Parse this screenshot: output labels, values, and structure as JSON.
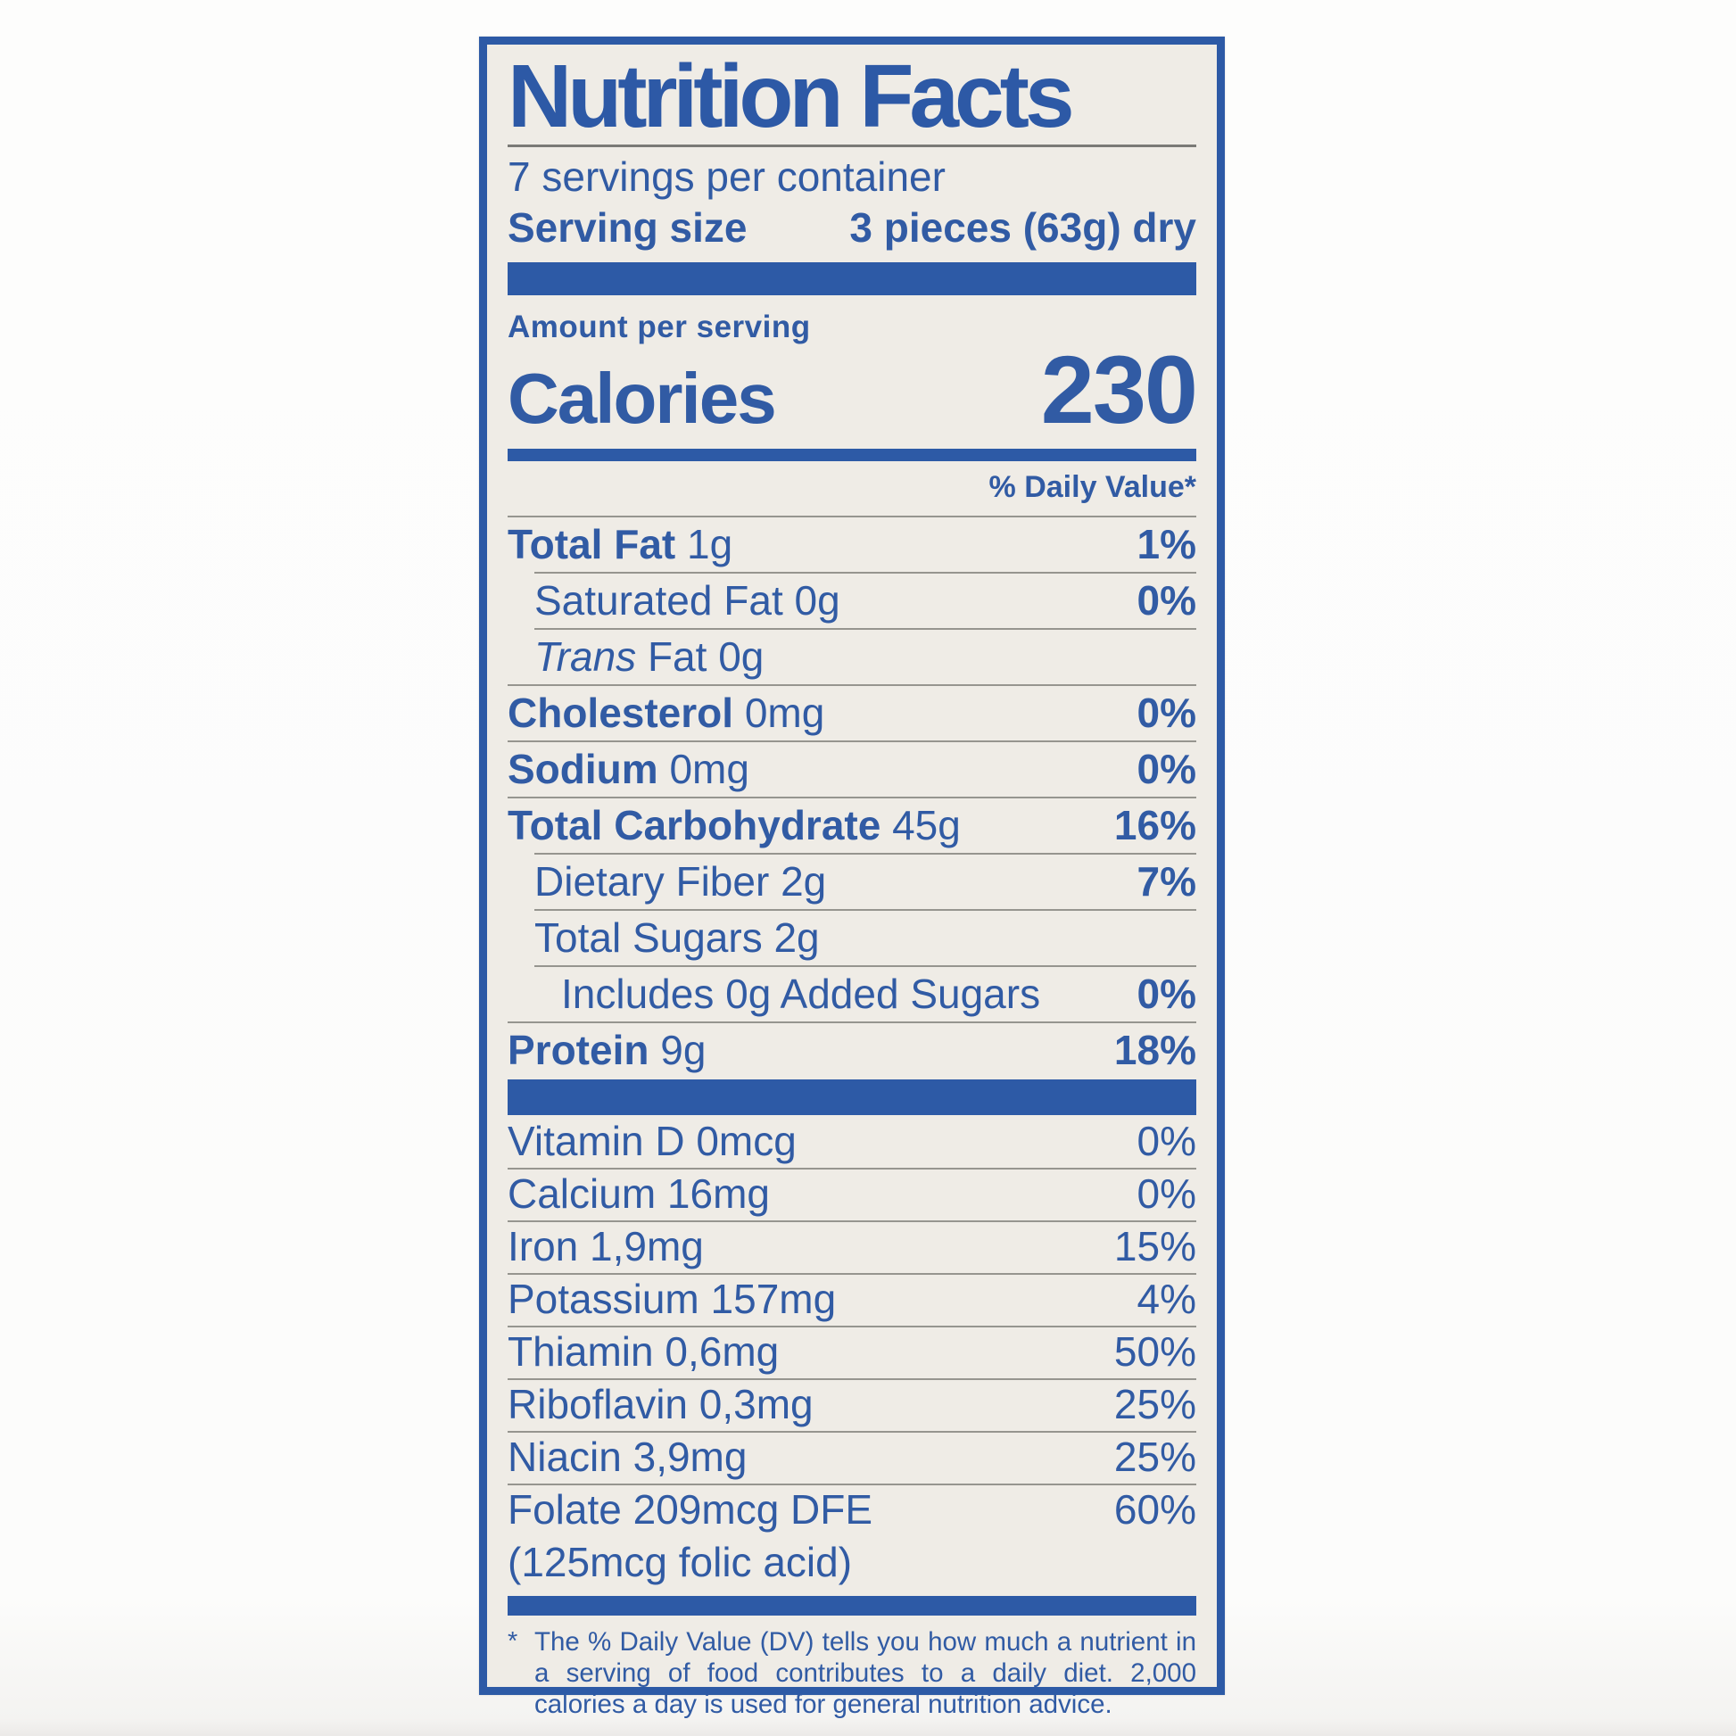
{
  "label": {
    "title": "Nutrition Facts",
    "servings_per_container": "7 servings per container",
    "serving_size_label": "Serving size",
    "serving_size_value": "3 pieces (63g) dry",
    "amount_per_serving": "Amount per serving",
    "calories_label": "Calories",
    "calories_value": "230",
    "daily_value_header": "% Daily Value*",
    "nutrients": [
      {
        "bold": "Total Fat",
        "rest": " 1g",
        "pct": "1%"
      },
      {
        "rest": "Saturated Fat 0g",
        "pct": "0%"
      },
      {
        "italic": "Trans",
        "rest": " Fat 0g",
        "pct": ""
      },
      {
        "bold": "Cholesterol",
        "rest": " 0mg",
        "pct": "0%"
      },
      {
        "bold": "Sodium",
        "rest": " 0mg",
        "pct": "0%"
      },
      {
        "bold": "Total Carbohydrate",
        "rest": " 45g",
        "pct": "16%"
      },
      {
        "rest": "Dietary Fiber 2g",
        "pct": "7%"
      },
      {
        "rest": "Total Sugars 2g",
        "pct": ""
      },
      {
        "rest": "Includes 0g Added Sugars",
        "pct": "0%"
      },
      {
        "bold": "Protein",
        "rest": " 9g",
        "pct": "18%"
      }
    ],
    "vitamins": [
      {
        "name": "Vitamin D 0mcg",
        "pct": "0%"
      },
      {
        "name": "Calcium 16mg",
        "pct": "0%"
      },
      {
        "name": "Iron 1,9mg",
        "pct": "15%"
      },
      {
        "name": "Potassium 157mg",
        "pct": "4%"
      },
      {
        "name": "Thiamin 0,6mg",
        "pct": "50%"
      },
      {
        "name": "Riboflavin 0,3mg",
        "pct": "25%"
      },
      {
        "name": "Niacin 3,9mg",
        "pct": "25%"
      },
      {
        "name": "Folate 209mcg DFE",
        "pct": "60%"
      },
      {
        "name": "(125mcg folic acid)",
        "pct": ""
      }
    ],
    "footnote_symbol": "*",
    "footnote": "The % Daily Value (DV) tells you how much a nutrient in a serving of food contributes to a daily diet. 2,000 calories a day is used for general nutrition advice.",
    "colors": {
      "accent_blue": "#2d5aa6",
      "text_blue": "#315ba4",
      "label_background": "#efece6",
      "page_background": "#fdfdfc",
      "hairline": "#96958f"
    }
  }
}
